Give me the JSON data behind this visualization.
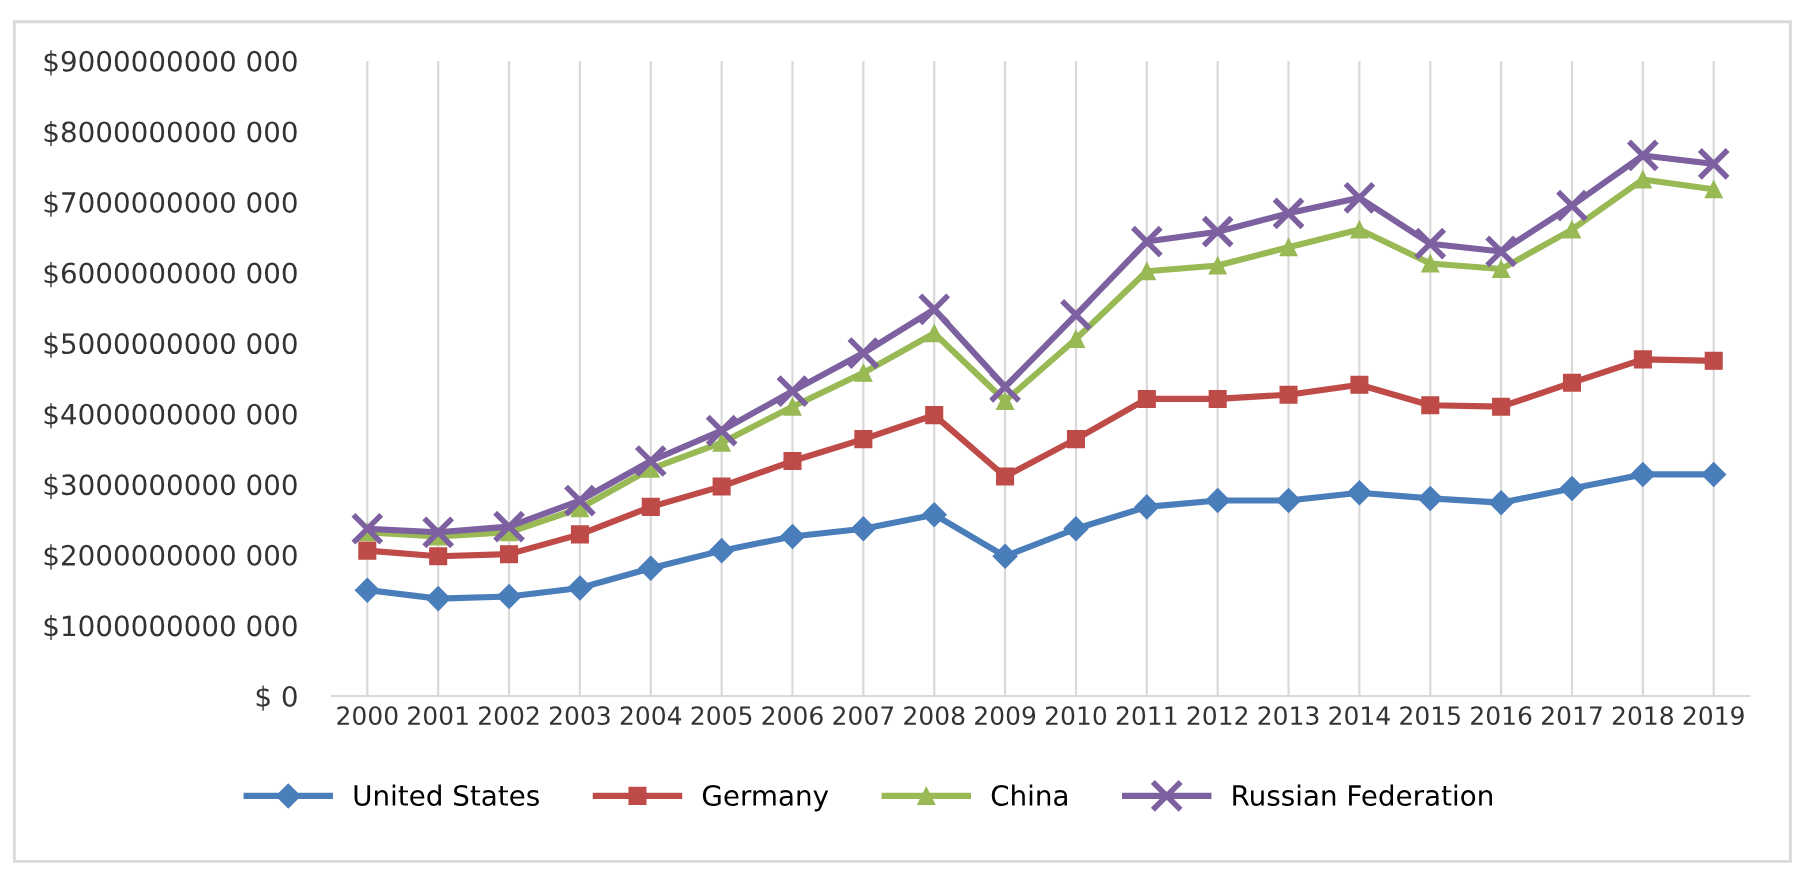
{
  "chart_data": {
    "type": "line",
    "categories": [
      "2000",
      "2001",
      "2002",
      "2003",
      "2004",
      "2005",
      "2006",
      "2007",
      "2008",
      "2009",
      "2010",
      "2011",
      "2012",
      "2013",
      "2014",
      "2015",
      "2016",
      "2017",
      "2018",
      "2019"
    ],
    "series": [
      {
        "name": "United States",
        "color": "#4a7ebb",
        "marker": "diamond",
        "values": [
          1500000000000.0,
          1380000000000.0,
          1410000000000.0,
          1530000000000.0,
          1810000000000.0,
          2060000000000.0,
          2260000000000.0,
          2370000000000.0,
          2570000000000.0,
          1980000000000.0,
          2370000000000.0,
          2680000000000.0,
          2770000000000.0,
          2770000000000.0,
          2880000000000.0,
          2800000000000.0,
          2740000000000.0,
          2940000000000.0,
          3140000000000.0,
          3140000000000.0
        ]
      },
      {
        "name": "Germany",
        "color": "#be4b48",
        "marker": "square",
        "values": [
          2060000000000.0,
          1980000000000.0,
          2010000000000.0,
          2290000000000.0,
          2680000000000.0,
          2970000000000.0,
          3330000000000.0,
          3640000000000.0,
          3980000000000.0,
          3110000000000.0,
          3640000000000.0,
          4210000000000.0,
          4210000000000.0,
          4270000000000.0,
          4410000000000.0,
          4120000000000.0,
          4100000000000.0,
          4440000000000.0,
          4770000000000.0,
          4750000000000.0
        ]
      },
      {
        "name": "China",
        "color": "#98b954",
        "marker": "triangle",
        "values": [
          2320000000000.0,
          2260000000000.0,
          2320000000000.0,
          2660000000000.0,
          3220000000000.0,
          3590000000000.0,
          4100000000000.0,
          4580000000000.0,
          5140000000000.0,
          4180000000000.0,
          5060000000000.0,
          6020000000000.0,
          6100000000000.0,
          6360000000000.0,
          6610000000000.0,
          6130000000000.0,
          6050000000000.0,
          6610000000000.0,
          7320000000000.0,
          7180000000000.0
        ]
      },
      {
        "name": "Russian Federation",
        "color": "#7d60a0",
        "marker": "cross",
        "values": [
          2370000000000.0,
          2320000000000.0,
          2400000000000.0,
          2770000000000.0,
          3330000000000.0,
          3760000000000.0,
          4320000000000.0,
          4860000000000.0,
          5480000000000.0,
          4380000000000.0,
          5400000000000.0,
          6440000000000.0,
          6580000000000.0,
          6840000000000.0,
          7060000000000.0,
          6410000000000.0,
          6300000000000.0,
          6950000000000.0,
          7660000000000.0,
          7540000000000.0
        ]
      }
    ],
    "ylim": [
      0,
      9000000000000.0
    ],
    "yticks": [
      {
        "value": 0,
        "label": "$ 0"
      },
      {
        "value": 1000000000000.0,
        "label": "$1000000000 000"
      },
      {
        "value": 2000000000000.0,
        "label": "$2000000000 000"
      },
      {
        "value": 3000000000000.0,
        "label": "$3000000000 000"
      },
      {
        "value": 4000000000000.0,
        "label": "$4000000000 000"
      },
      {
        "value": 5000000000000.0,
        "label": "$5000000000 000"
      },
      {
        "value": 6000000000000.0,
        "label": "$6000000000 000"
      },
      {
        "value": 7000000000000.0,
        "label": "$7000000000 000"
      },
      {
        "value": 8000000000000.0,
        "label": "$8000000000 000"
      },
      {
        "value": 9000000000000.0,
        "label": "$9000000000 000"
      }
    ],
    "grid": "x",
    "legend": "bottom",
    "line_style": "solid"
  }
}
